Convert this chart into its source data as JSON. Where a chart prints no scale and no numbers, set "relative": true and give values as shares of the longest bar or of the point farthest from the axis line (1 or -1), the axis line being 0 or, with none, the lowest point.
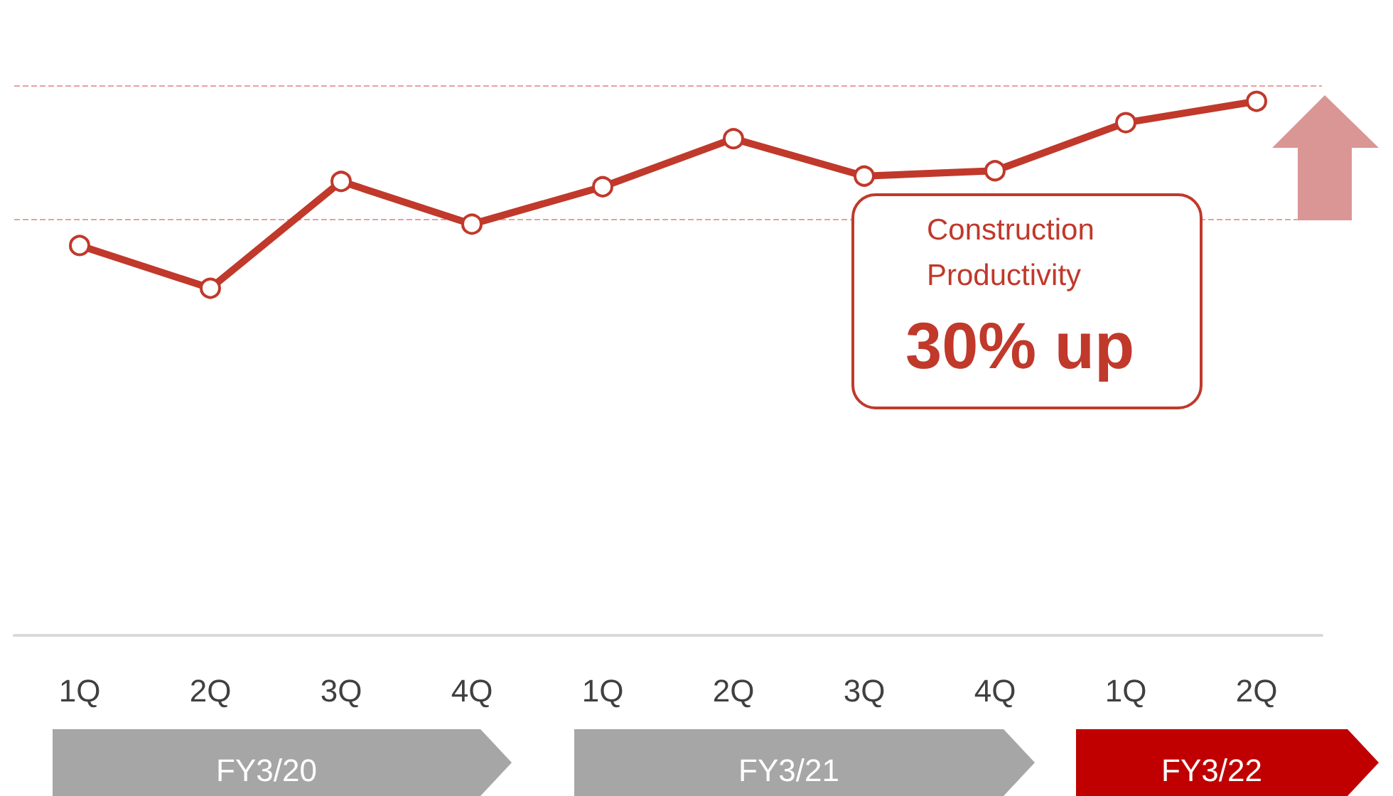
{
  "chart_data": {
    "type": "line",
    "relative": true,
    "categories": [
      "1Q",
      "2Q",
      "3Q",
      "4Q",
      "1Q",
      "2Q",
      "3Q",
      "4Q",
      "1Q",
      "2Q"
    ],
    "series": [
      {
        "color": "#c0392b",
        "values": [
          0.73,
          0.65,
          0.85,
          0.77,
          0.84,
          0.93,
          0.86,
          0.87,
          0.96,
          1.0
        ]
      }
    ],
    "ref_lines": [
      {
        "axis": "y",
        "value": 0.78,
        "color": "#e8a0a0",
        "line_style": "dashed"
      },
      {
        "axis": "y",
        "value": 1.03,
        "color": "#e8a0a0",
        "line_style": "dashed"
      }
    ],
    "annotations": [
      "Construction Productivity",
      "30% up",
      "FY3/20",
      "FY3/21",
      "FY3/22"
    ],
    "marker": "circle",
    "line_style": "solid",
    "grid": false
  }
}
